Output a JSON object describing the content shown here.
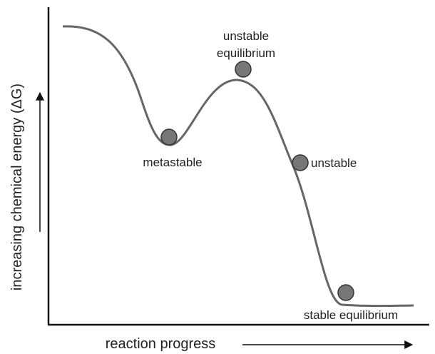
{
  "axes": {
    "y_label": "increasing chemical energy (ΔG)",
    "x_label": "reaction progress"
  },
  "states": [
    {
      "label": [
        "unstable",
        "equilibrium"
      ]
    },
    {
      "label": [
        "metastable"
      ]
    },
    {
      "label": [
        "unstable"
      ]
    },
    {
      "label": [
        "stable equilibrium"
      ]
    }
  ]
}
